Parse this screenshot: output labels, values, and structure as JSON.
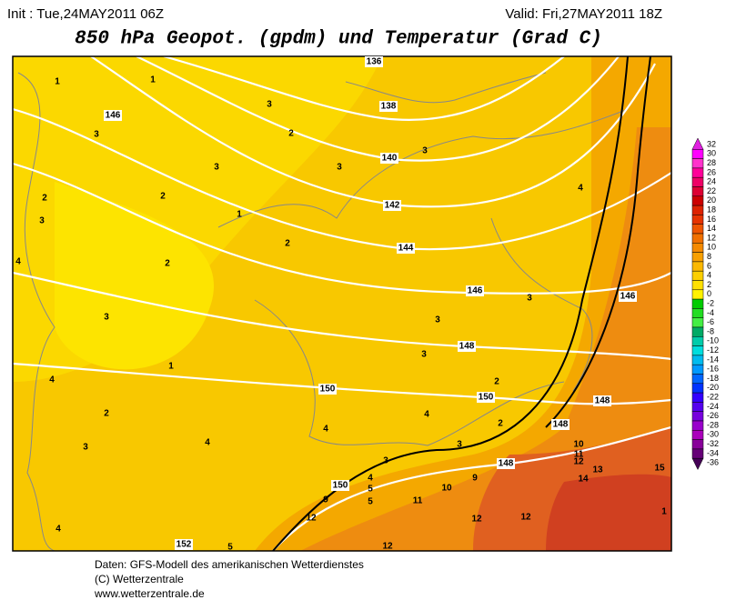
{
  "header": {
    "init": "Init : Tue,24MAY2011 06Z",
    "valid": "Valid: Fri,27MAY2011 18Z",
    "title": "850 hPa Geopot. (gpdm) und Temperatur (Grad C)"
  },
  "colorbar": {
    "ticks": [
      32,
      30,
      28,
      26,
      24,
      22,
      20,
      18,
      16,
      14,
      12,
      10,
      8,
      6,
      4,
      2,
      0,
      -2,
      -4,
      -6,
      -8,
      -10,
      -12,
      -14,
      -16,
      -18,
      -20,
      -22,
      -24,
      -26,
      -28,
      -30,
      -32,
      -34,
      -36
    ],
    "colors": [
      "#e020e0",
      "#ff00ff",
      "#ff33cc",
      "#ff0099",
      "#ee0066",
      "#dd0033",
      "#cc0000",
      "#dd2200",
      "#e63300",
      "#ee5500",
      "#f07000",
      "#f58a00",
      "#f8a000",
      "#fbb800",
      "#fccf00",
      "#ffe000",
      "#fff200",
      "#00cc00",
      "#22dd22",
      "#44ee44",
      "#00aa66",
      "#00ccaa",
      "#00dddd",
      "#00bbee",
      "#0099ff",
      "#0066ff",
      "#0033ff",
      "#3300ff",
      "#5500ee",
      "#7700dd",
      "#9900cc",
      "#aa00bb",
      "#880099",
      "#660077",
      "#440055"
    ]
  },
  "map": {
    "geopotential_labels": [
      136,
      138,
      140,
      142,
      144,
      146,
      146,
      146,
      148,
      148,
      148,
      148,
      150,
      150,
      150,
      152
    ],
    "temperature_labels": [
      1,
      1,
      3,
      2,
      3,
      3,
      3,
      3,
      2,
      2,
      3,
      1,
      2,
      2,
      4,
      3,
      3,
      3,
      1,
      3,
      4,
      2,
      2,
      4,
      2,
      3,
      4,
      4,
      3,
      4,
      3,
      4,
      5,
      5,
      9,
      9,
      10,
      10,
      11,
      12,
      12,
      12,
      12,
      12,
      13,
      14,
      15,
      11,
      4,
      5,
      1
    ]
  },
  "footer": {
    "line1": "Daten: GFS-Modell des amerikanischen Wetterdienstes",
    "line2": "(C) Wetterzentrale",
    "line3": "www.wetterzentrale.de"
  }
}
